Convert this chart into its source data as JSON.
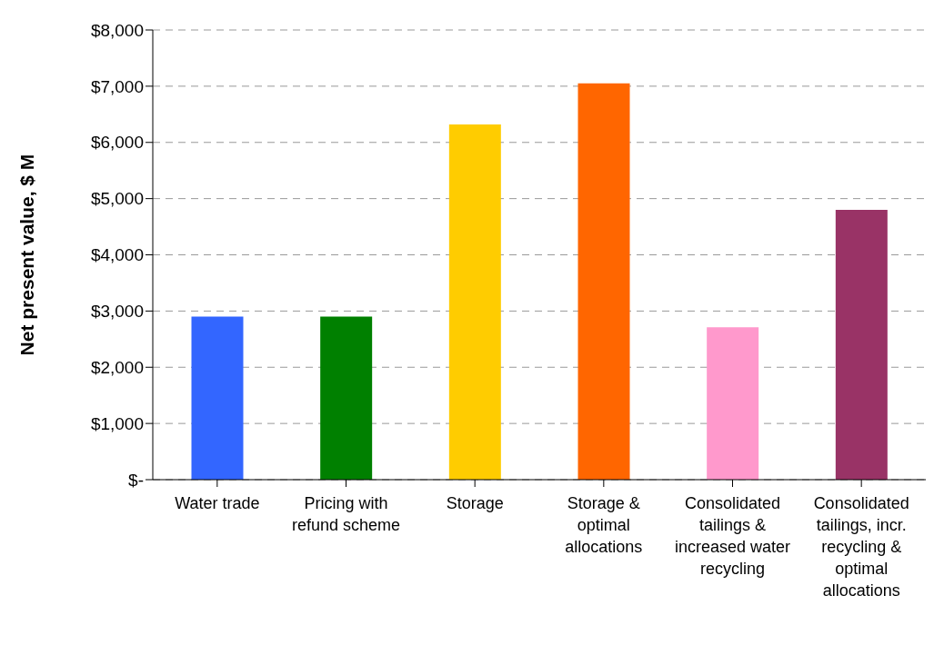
{
  "chart_data": {
    "type": "bar",
    "ylabel": "Net present value, $ M",
    "categories": [
      "Water trade",
      "Pricing with refund scheme",
      "Storage",
      "Storage & optimal allocations",
      "Consolidated tailings & increased water recycling",
      "Consolidated tailings, incr. recycling & optimal allocations"
    ],
    "values": [
      2900,
      2900,
      6320,
      7050,
      2710,
      4800
    ],
    "colors": [
      "#3366ff",
      "#008000",
      "#ffcc00",
      "#ff6600",
      "#ff99cc",
      "#993366"
    ],
    "ylim": [
      0,
      8000
    ],
    "yticks": [
      {
        "value": 0,
        "label": "$-"
      },
      {
        "value": 1000,
        "label": "$1,000"
      },
      {
        "value": 2000,
        "label": "$2,000"
      },
      {
        "value": 3000,
        "label": "$3,000"
      },
      {
        "value": 4000,
        "label": "$4,000"
      },
      {
        "value": 5000,
        "label": "$5,000"
      },
      {
        "value": 6000,
        "label": "$6,000"
      },
      {
        "value": 7000,
        "label": "$7,000"
      },
      {
        "value": 8000,
        "label": "$8,000"
      }
    ],
    "grid": "y"
  }
}
